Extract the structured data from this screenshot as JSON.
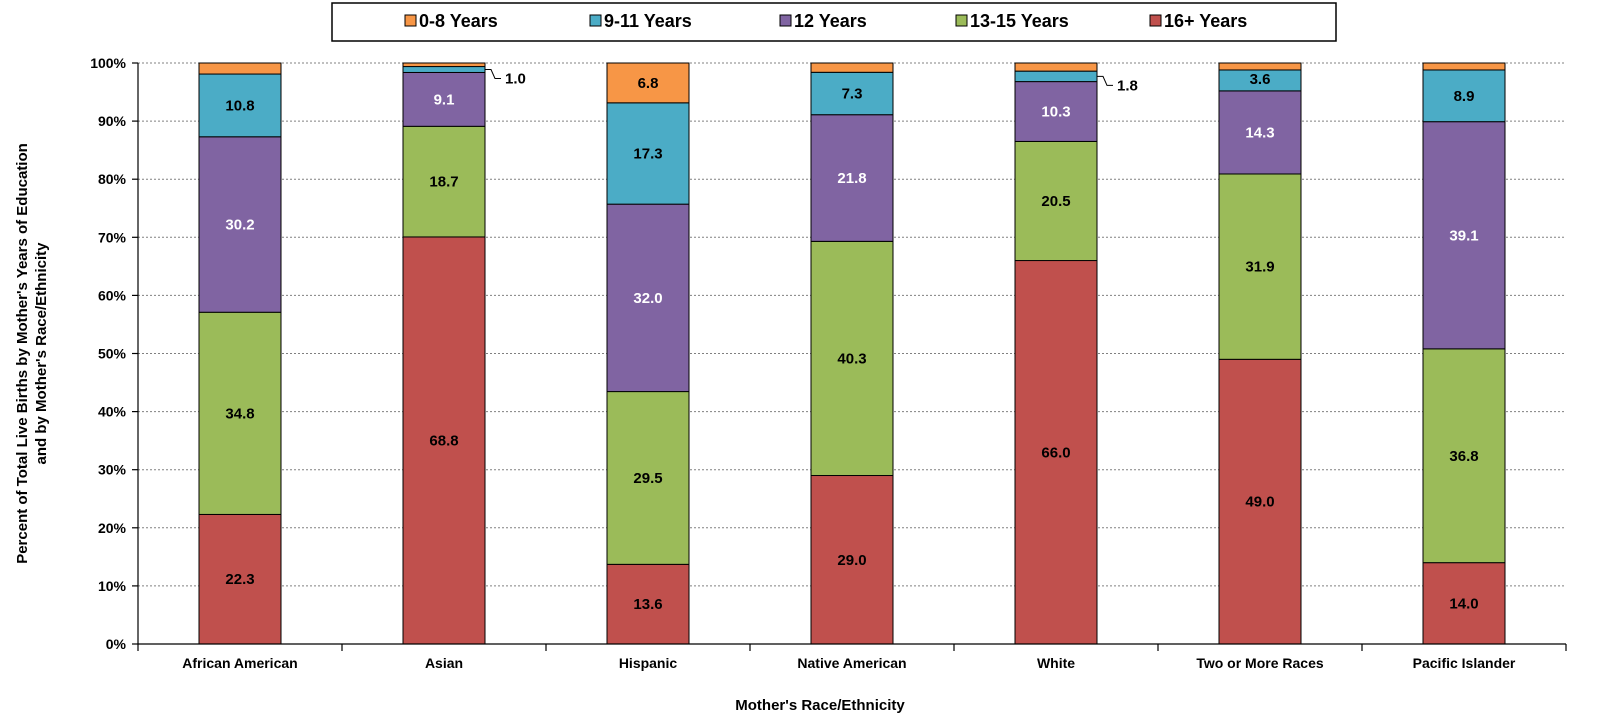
{
  "chart_data": {
    "type": "bar",
    "stacked": true,
    "xlabel": "Mother's Race/Ethnicity",
    "ylabel_lines": [
      "Percent of Total Live Births by Mother's Years of Education",
      "and by Mother's Race/Ethnicity"
    ],
    "ylim": [
      0,
      100
    ],
    "yticks": [
      "0%",
      "10%",
      "20%",
      "30%",
      "40%",
      "50%",
      "60%",
      "70%",
      "80%",
      "90%",
      "100%"
    ],
    "grid": true,
    "legend_position": "top",
    "categories": [
      "African American",
      "Asian",
      "Hispanic",
      "Native American",
      "White",
      "Two or More Races",
      "Pacific Islander"
    ],
    "series": [
      {
        "name": "16+ Years",
        "color": "#C0504D",
        "values": [
          22.3,
          68.8,
          13.6,
          29.0,
          66.0,
          49.0,
          14.0
        ],
        "labels": [
          "22.3",
          "68.8",
          "13.6",
          "29.0",
          "66.0",
          "49.0",
          "14.0"
        ],
        "label_color": "#000000"
      },
      {
        "name": "13-15 Years",
        "color": "#9BBB59",
        "values": [
          34.8,
          18.7,
          29.5,
          40.3,
          20.5,
          31.9,
          36.8
        ],
        "labels": [
          "34.8",
          "18.7",
          "29.5",
          "40.3",
          "20.5",
          "31.9",
          "36.8"
        ],
        "label_color": "#000000"
      },
      {
        "name": "12 Years",
        "color": "#8064A2",
        "values": [
          30.2,
          9.1,
          32.0,
          21.8,
          10.3,
          14.3,
          39.1
        ],
        "labels": [
          "30.2",
          "9.1",
          "32.0",
          "21.8",
          "10.3",
          "14.3",
          "39.1"
        ],
        "label_color": "#ffffff"
      },
      {
        "name": "9-11 Years",
        "color": "#4BACC6",
        "values": [
          10.8,
          1.0,
          17.3,
          7.3,
          1.8,
          3.6,
          8.9
        ],
        "labels": [
          "10.8",
          "1.0",
          "17.3",
          "7.3",
          "1.8",
          "3.6",
          "8.9"
        ],
        "label_color": "#000000"
      },
      {
        "name": "0-8 Years",
        "color": "#F79646",
        "values": [
          1.9,
          0.6,
          6.8,
          1.6,
          1.4,
          1.2,
          1.2
        ],
        "labels": [
          "",
          "",
          "6.8",
          "",
          "",
          "",
          ""
        ],
        "label_color": "#000000"
      }
    ],
    "legend_order": [
      "0-8 Years",
      "9-11 Years",
      "12 Years",
      "13-15 Years",
      "16+ Years"
    ]
  }
}
